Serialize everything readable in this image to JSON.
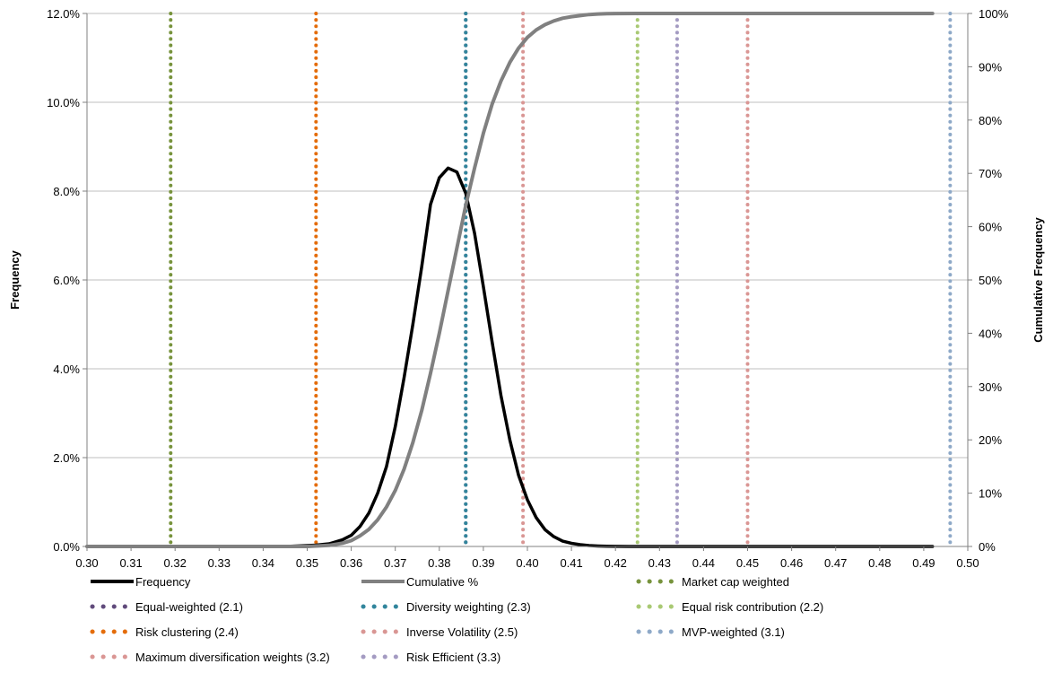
{
  "chart_data": {
    "type": "line",
    "xlabel": "",
    "ylabel": "Frequency",
    "y2label": "Cumulative Frequency",
    "xlim": [
      0.3,
      0.5
    ],
    "ylim": [
      0,
      0.12
    ],
    "y2lim": [
      0,
      1
    ],
    "x_ticks": [
      "0.30",
      "0.31",
      "0.32",
      "0.33",
      "0.34",
      "0.35",
      "0.36",
      "0.37",
      "0.38",
      "0.39",
      "0.40",
      "0.41",
      "0.42",
      "0.43",
      "0.44",
      "0.45",
      "0.46",
      "0.47",
      "0.48",
      "0.49",
      "0.50"
    ],
    "y_ticks": [
      "0.0%",
      "2.0%",
      "4.0%",
      "6.0%",
      "8.0%",
      "10.0%",
      "12.0%"
    ],
    "y2_ticks": [
      "0%",
      "10%",
      "20%",
      "30%",
      "40%",
      "50%",
      "60%",
      "70%",
      "80%",
      "90%",
      "100%"
    ],
    "grid": "horizontal",
    "legend_position": "bottom",
    "series": [
      {
        "name": "Frequency",
        "axis": "left",
        "color": "#000000",
        "x": [
          0.3,
          0.345,
          0.35,
          0.352,
          0.355,
          0.358,
          0.36,
          0.362,
          0.364,
          0.366,
          0.368,
          0.37,
          0.372,
          0.374,
          0.376,
          0.378,
          0.38,
          0.382,
          0.384,
          0.386,
          0.388,
          0.39,
          0.392,
          0.394,
          0.396,
          0.398,
          0.4,
          0.402,
          0.404,
          0.406,
          0.408,
          0.41,
          0.412,
          0.414,
          0.416,
          0.418,
          0.42,
          0.423,
          0.426,
          0.43,
          0.492
        ],
        "y": [
          0,
          0,
          0.0002,
          0.0003,
          0.0006,
          0.0015,
          0.0025,
          0.0045,
          0.0075,
          0.012,
          0.018,
          0.027,
          0.038,
          0.05,
          0.063,
          0.077,
          0.083,
          0.0852,
          0.0843,
          0.0795,
          0.0705,
          0.0585,
          0.046,
          0.034,
          0.024,
          0.016,
          0.0105,
          0.0065,
          0.0038,
          0.0022,
          0.0012,
          0.0007,
          0.0004,
          0.0002,
          0.0001,
          5e-05,
          2e-05,
          1e-05,
          0,
          0,
          0
        ]
      },
      {
        "name": "Cumulative %",
        "axis": "right",
        "color": "#808080",
        "x": [
          0.3,
          0.35,
          0.355,
          0.358,
          0.36,
          0.362,
          0.364,
          0.366,
          0.368,
          0.37,
          0.372,
          0.374,
          0.376,
          0.378,
          0.38,
          0.382,
          0.384,
          0.386,
          0.388,
          0.39,
          0.392,
          0.394,
          0.396,
          0.398,
          0.4,
          0.402,
          0.404,
          0.406,
          0.408,
          0.41,
          0.412,
          0.414,
          0.416,
          0.418,
          0.42,
          0.425,
          0.43,
          0.492
        ],
        "y": [
          0,
          0,
          0.002,
          0.006,
          0.011,
          0.02,
          0.032,
          0.05,
          0.074,
          0.105,
          0.145,
          0.195,
          0.255,
          0.325,
          0.4,
          0.48,
          0.56,
          0.64,
          0.71,
          0.775,
          0.83,
          0.873,
          0.908,
          0.935,
          0.955,
          0.969,
          0.979,
          0.986,
          0.991,
          0.994,
          0.996,
          0.998,
          0.999,
          0.9995,
          0.9998,
          1.0,
          1.0,
          1.0
        ]
      }
    ],
    "vertical_lines": [
      {
        "name": "Market cap weighted",
        "x": 0.319,
        "color": "#77933C"
      },
      {
        "name": "Equal-weighted (2.1)",
        "x": 0.386,
        "color": "#604A7B"
      },
      {
        "name": "Diversity weighting (2.3)",
        "x": 0.386,
        "color": "#31859C"
      },
      {
        "name": "Equal risk contribution (2.2)",
        "x": 0.425,
        "color": "#A9C973"
      },
      {
        "name": "Risk clustering (2.4)",
        "x": 0.352,
        "color": "#E46C0A"
      },
      {
        "name": "Inverse Volatility (2.5)",
        "x": 0.399,
        "color": "#D99694"
      },
      {
        "name": "MVP-weighted (3.1)",
        "x": 0.496,
        "color": "#8EA9C8"
      },
      {
        "name": "Maximum diversification weights (3.2)",
        "x": 0.45,
        "color": "#DA9694"
      },
      {
        "name": "Risk Efficient (3.3)",
        "x": 0.434,
        "color": "#A49BC2"
      }
    ],
    "legend": [
      {
        "label": "Frequency",
        "style": "solid",
        "color": "#000000"
      },
      {
        "label": "Cumulative %",
        "style": "solid",
        "color": "#808080"
      },
      {
        "label": "Market cap weighted",
        "style": "dotted",
        "color": "#77933C"
      },
      {
        "label": "Equal-weighted (2.1)",
        "style": "dotted",
        "color": "#604A7B"
      },
      {
        "label": "Diversity weighting (2.3)",
        "style": "dotted",
        "color": "#31859C"
      },
      {
        "label": "Equal risk contribution (2.2)",
        "style": "dotted",
        "color": "#A9C973"
      },
      {
        "label": "Risk clustering (2.4)",
        "style": "dotted",
        "color": "#E46C0A"
      },
      {
        "label": "Inverse Volatility (2.5)",
        "style": "dotted",
        "color": "#D99694"
      },
      {
        "label": "MVP-weighted (3.1)",
        "style": "dotted",
        "color": "#8EA9C8"
      },
      {
        "label": "Maximum diversification weights (3.2)",
        "style": "dotted",
        "color": "#DA9694"
      },
      {
        "label": "Risk Efficient (3.3)",
        "style": "dotted",
        "color": "#A49BC2"
      }
    ]
  }
}
